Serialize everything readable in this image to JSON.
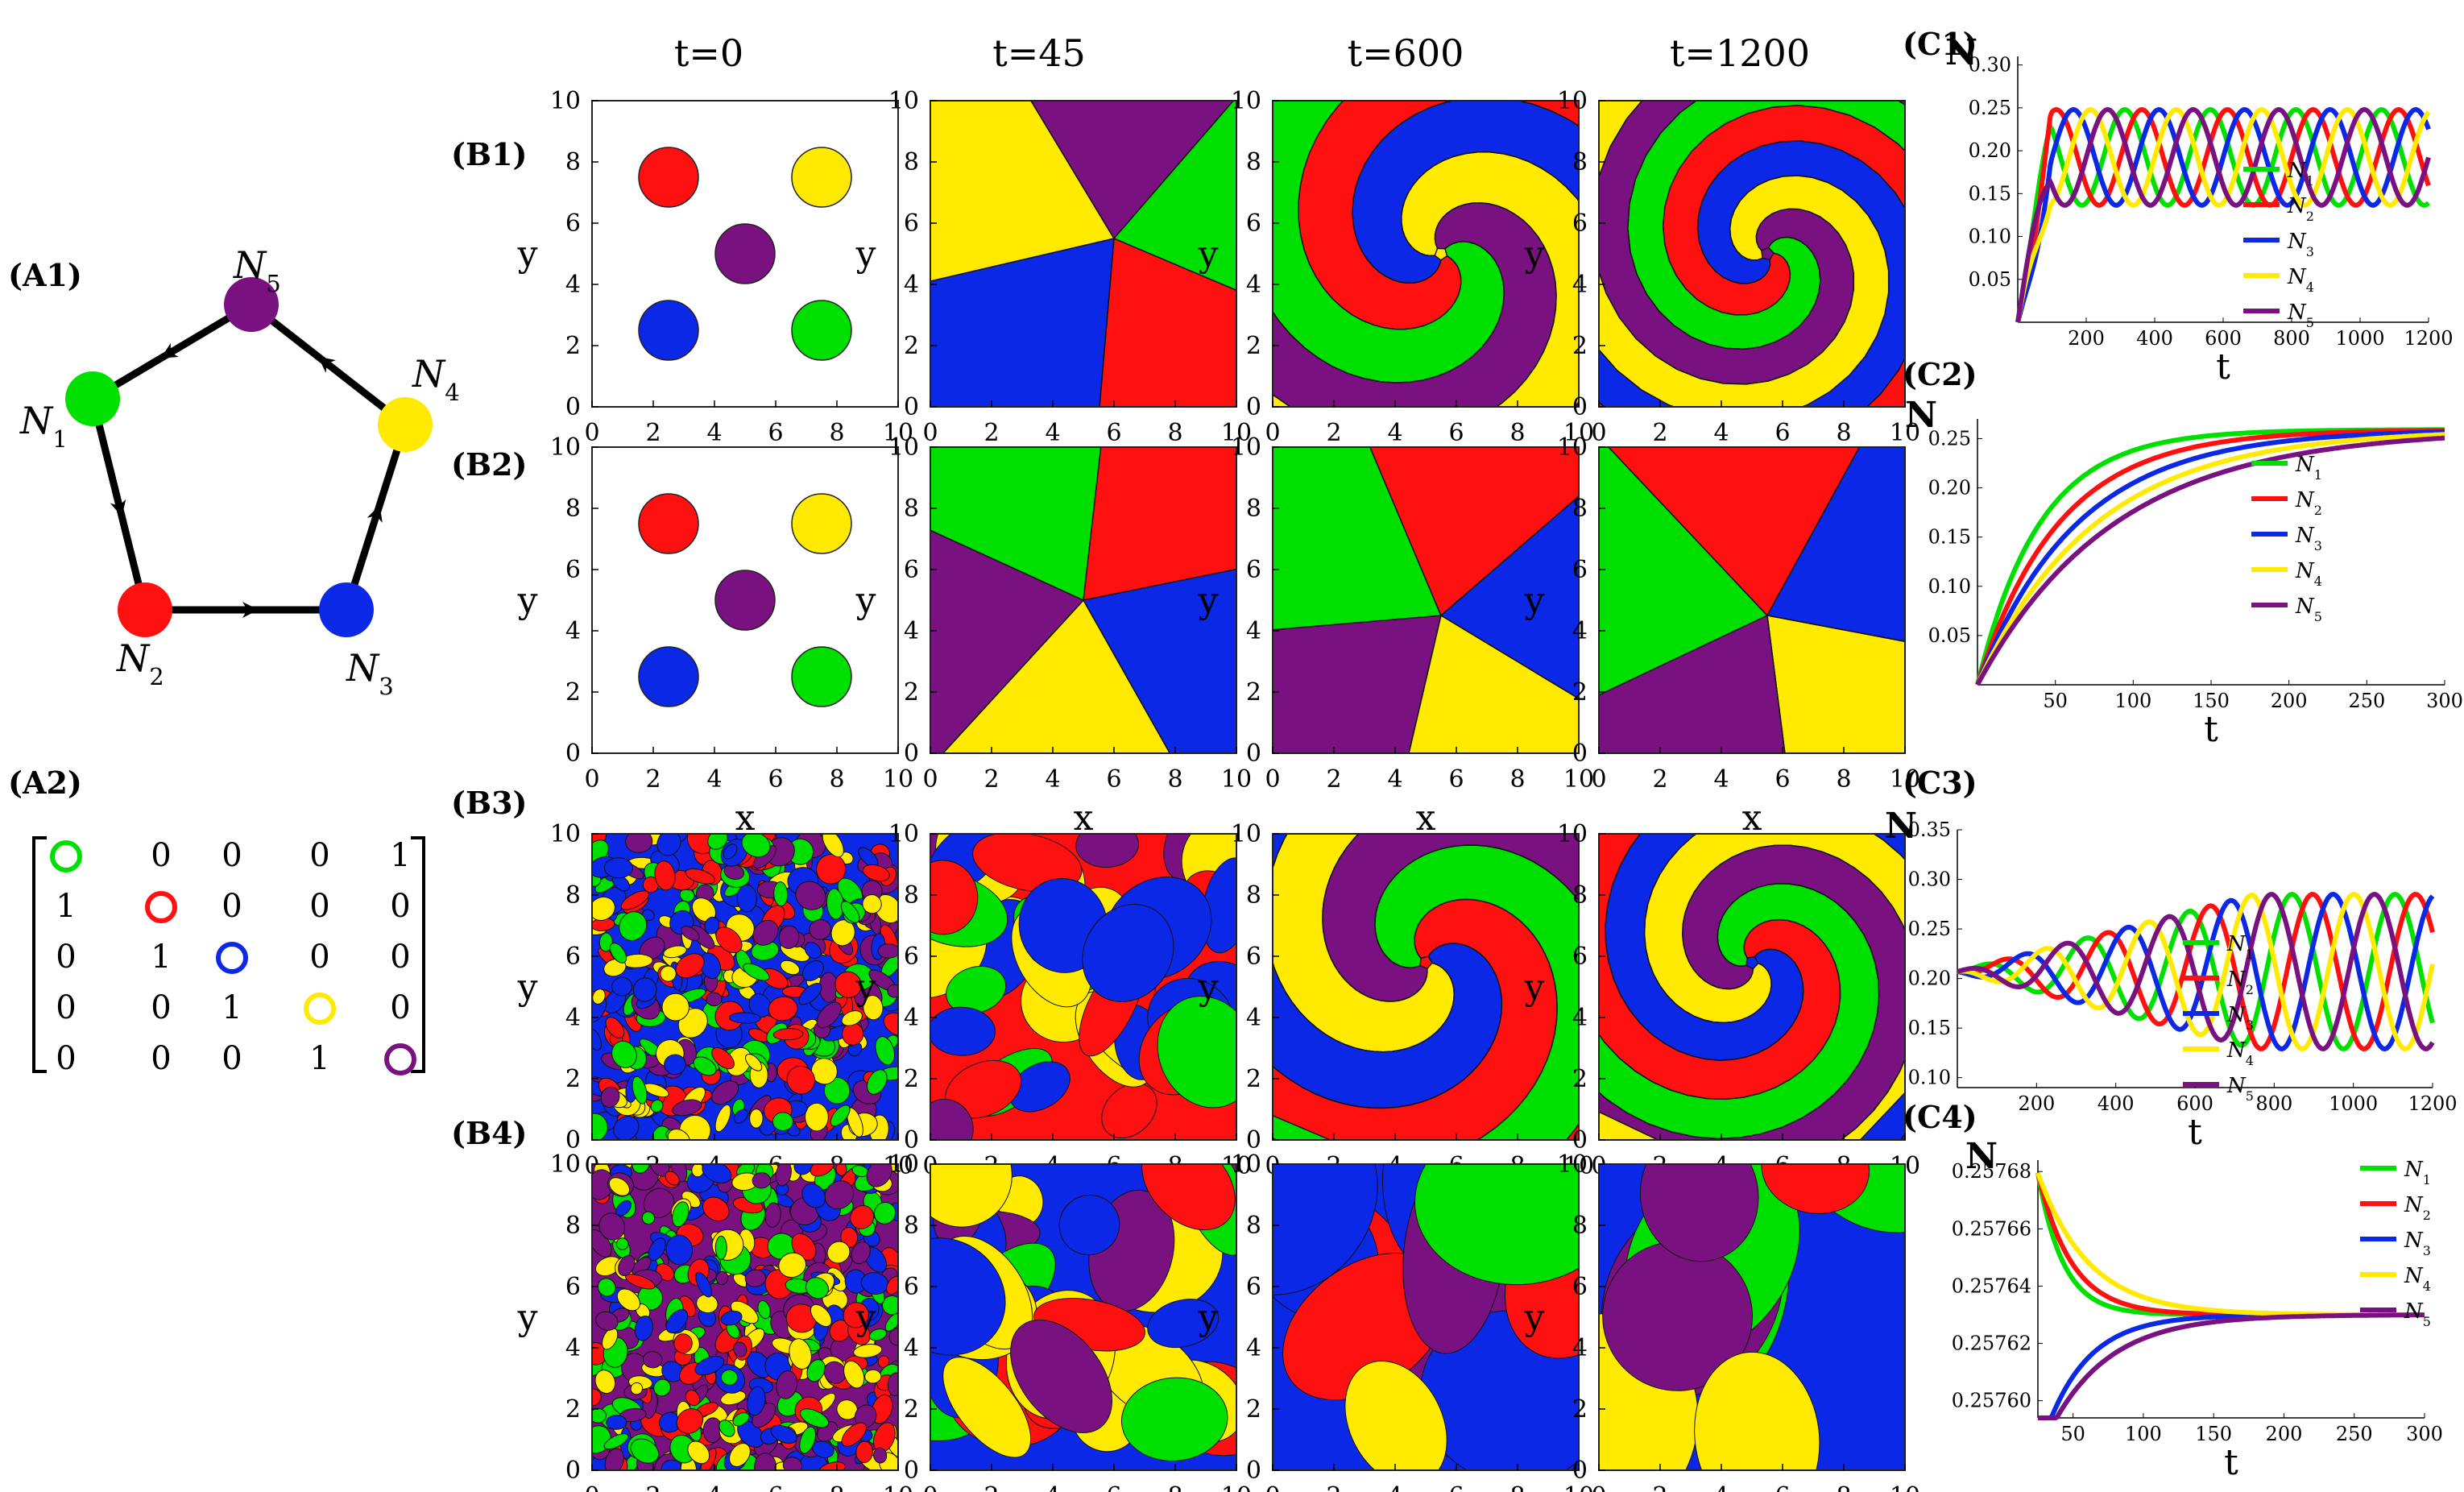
{
  "colors": {
    "N1": "#00e000",
    "N2": "#ff1010",
    "N3": "#0a28e6",
    "N4": "#ffea00",
    "N5": "#7a1180"
  },
  "panel_labels": {
    "A1": "(A1)",
    "A2": "(A2)",
    "B1": "(B1)",
    "B2": "(B2)",
    "B3": "(B3)",
    "B4": "(B4)",
    "C1": "(C1)",
    "C2": "(C2)",
    "C3": "(C3)",
    "C4": "(C4)"
  },
  "column_titles": [
    "t=0",
    "t=45",
    "t=600",
    "t=1200"
  ],
  "graph": {
    "nodes": [
      {
        "id": "N1",
        "label": "N",
        "sub": "1",
        "color": "#00e000"
      },
      {
        "id": "N2",
        "label": "N",
        "sub": "2",
        "color": "#ff1010"
      },
      {
        "id": "N3",
        "label": "N",
        "sub": "3",
        "color": "#0a28e6"
      },
      {
        "id": "N4",
        "label": "N",
        "sub": "4",
        "color": "#ffea00"
      },
      {
        "id": "N5",
        "label": "N",
        "sub": "5",
        "color": "#7a1180"
      }
    ],
    "edges": [
      [
        "N1",
        "N2"
      ],
      [
        "N2",
        "N3"
      ],
      [
        "N3",
        "N4"
      ],
      [
        "N4",
        "N5"
      ],
      [
        "N5",
        "N1"
      ]
    ]
  },
  "matrix": [
    [
      "N1",
      "0",
      "0",
      "0",
      "1"
    ],
    [
      "1",
      "N2",
      "0",
      "0",
      "0"
    ],
    [
      "0",
      "1",
      "N3",
      "0",
      "0"
    ],
    [
      "0",
      "0",
      "1",
      "N4",
      "0"
    ],
    [
      "0",
      "0",
      "0",
      "1",
      "N5"
    ]
  ],
  "spatial_axes": {
    "xlabel": "x",
    "ylabel": "y",
    "ticks": [
      "0",
      "2",
      "4",
      "6",
      "8",
      "10"
    ]
  },
  "legend_names": [
    {
      "n": "N",
      "s": "1"
    },
    {
      "n": "N",
      "s": "2"
    },
    {
      "n": "N",
      "s": "3"
    },
    {
      "n": "N",
      "s": "4"
    },
    {
      "n": "N",
      "s": "5"
    }
  ],
  "chart_data": [
    {
      "id": "C1",
      "type": "line",
      "ylabel": "N",
      "xlabel": "t",
      "xticks": [
        "200",
        "400",
        "600",
        "800",
        "1000",
        "1200"
      ],
      "yticks": [
        "0.05",
        "0.10",
        "0.15",
        "0.20",
        "0.25",
        "0.30"
      ],
      "xlim": [
        0,
        1200
      ],
      "ylim": [
        0,
        0.31
      ]
    },
    {
      "id": "C2",
      "type": "line",
      "ylabel": "N",
      "xlabel": "t",
      "xticks": [
        "50",
        "100",
        "150",
        "200",
        "250",
        "300"
      ],
      "yticks": [
        "0.05",
        "0.10",
        "0.15",
        "0.20",
        "0.25"
      ],
      "xlim": [
        0,
        300
      ],
      "ylim": [
        0,
        0.27
      ]
    },
    {
      "id": "C3",
      "type": "line",
      "ylabel": "N",
      "xlabel": "t",
      "xticks": [
        "200",
        "400",
        "600",
        "800",
        "1000",
        "1200"
      ],
      "yticks": [
        "0.10",
        "0.15",
        "0.20",
        "0.25",
        "0.30",
        "0.35"
      ],
      "xlim": [
        0,
        1200
      ],
      "ylim": [
        0.09,
        0.35
      ]
    },
    {
      "id": "C4",
      "type": "line",
      "ylabel": "N",
      "xlabel": "t",
      "xticks": [
        "50",
        "100",
        "150",
        "200",
        "250",
        "300"
      ],
      "yticks": [
        "0.25760",
        "0.25762",
        "0.25764",
        "0.25766",
        "0.25768"
      ],
      "xlim": [
        25,
        300
      ],
      "ylim": [
        0.257594,
        0.257684
      ]
    }
  ]
}
